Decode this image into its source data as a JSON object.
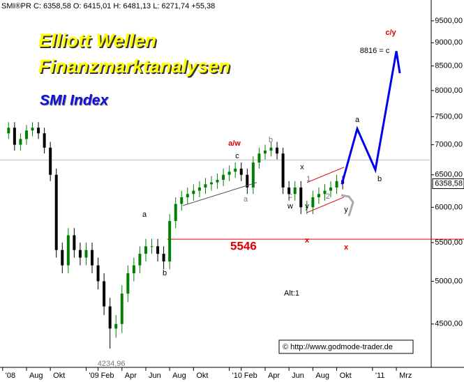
{
  "chart_data": {
    "type": "candlestick",
    "header": "SMI®PR C: 6358,58 O: 6415,01 H: 6481,13 L: 6271,74 +55,38",
    "title": "Elliott Wellen",
    "title2": "Finanzmarktanalysen",
    "subtitle": "SMI Index",
    "credit": "© http://www.godmode-trader.de",
    "log_scale": true,
    "up_color": "#008000",
    "down_color": "#000000",
    "x": [
      5.5,
      6,
      6.5,
      7,
      7.5,
      8,
      8.5,
      9,
      9.5,
      10,
      10.5,
      11,
      11.5,
      12,
      12.5,
      13,
      13.5,
      14,
      14.5,
      15,
      15.5,
      16,
      16.5,
      17,
      17.5,
      18,
      18.5,
      19,
      19.5,
      20,
      20.5,
      21,
      21.5,
      22,
      22.5,
      23,
      23.5,
      24,
      24.5,
      25,
      25.5,
      26,
      26.5,
      27,
      27.5,
      28,
      28.5,
      29,
      29.5,
      30,
      30.5,
      31,
      31.5,
      32,
      32.5,
      33,
      33.5
    ],
    "open": [
      7200,
      7300,
      7000,
      7100,
      7250,
      7300,
      7200,
      6950,
      6500,
      5400,
      5200,
      5600,
      5400,
      5300,
      5400,
      5200,
      5000,
      4700,
      4450,
      4500,
      4850,
      5100,
      5200,
      5350,
      5450,
      5450,
      5350,
      5250,
      5800,
      6050,
      6150,
      6200,
      6250,
      6300,
      6350,
      6380,
      6420,
      6500,
      6550,
      6600,
      6500,
      6300,
      6700,
      6850,
      6900,
      6950,
      6850,
      6300,
      6200,
      6300,
      6000,
      6000,
      6150,
      6200,
      6250,
      6300,
      6415.01
    ],
    "high": [
      7400,
      7400,
      7200,
      7350,
      7400,
      7400,
      7300,
      7050,
      6600,
      5500,
      5700,
      5700,
      5500,
      5500,
      5500,
      5300,
      5100,
      4800,
      4600,
      4950,
      5200,
      5300,
      5450,
      5550,
      5550,
      5550,
      5450,
      5900,
      6150,
      6250,
      6300,
      6350,
      6400,
      6450,
      6480,
      6520,
      6600,
      6650,
      6700,
      6700,
      6600,
      6800,
      6950,
      7000,
      7050,
      7050,
      6950,
      6400,
      6400,
      6400,
      6100,
      6250,
      6300,
      6350,
      6400,
      6500,
      6481.13
    ],
    "low": [
      7100,
      6900,
      6900,
      7000,
      7150,
      7100,
      6850,
      6400,
      5300,
      5100,
      5100,
      5300,
      5200,
      5200,
      5100,
      4900,
      4600,
      4234.96,
      4350,
      4400,
      4750,
      5000,
      5100,
      5250,
      5350,
      5250,
      5150,
      5150,
      5700,
      5950,
      6050,
      6100,
      6150,
      6200,
      6250,
      6280,
      6320,
      6400,
      6450,
      6400,
      6200,
      6200,
      6600,
      6750,
      6800,
      6750,
      6200,
      6100,
      6100,
      5900,
      5900,
      5900,
      6050,
      6100,
      6150,
      6200,
      6271.74
    ],
    "close": [
      7300,
      7000,
      7100,
      7250,
      7300,
      7200,
      6950,
      6500,
      5400,
      5200,
      5600,
      5400,
      5300,
      5400,
      5200,
      5000,
      4700,
      4450,
      4500,
      4850,
      5100,
      5200,
      5350,
      5450,
      5450,
      5350,
      5250,
      5800,
      6050,
      6150,
      6200,
      6250,
      6300,
      6350,
      6380,
      6420,
      6500,
      6550,
      6600,
      6500,
      6300,
      6700,
      6850,
      6900,
      6950,
      6850,
      6300,
      6200,
      6300,
      6000,
      6000,
      6150,
      6200,
      6250,
      6300,
      6400,
      6358.58
    ],
    "low_labels": {
      "index": 17,
      "label": "4234,96"
    },
    "last_label": "6358,58",
    "support": 5546,
    "support_color": "#dd0000",
    "resistance": 6740,
    "projection": {
      "color": "#0000ee",
      "x": [
        33.43,
        34.72,
        36.24,
        38.0,
        38.29
      ],
      "values": [
        6350,
        7280,
        6580,
        8816,
        8350
      ]
    },
    "trendlines": [
      {
        "color": "#dd0000",
        "x": [
          30.51,
          33.61
        ],
        "values": [
          6378,
          6622
        ]
      },
      {
        "color": "#dd0000",
        "x": [
          30.51,
          33.61
        ],
        "values": [
          5922,
          6152
        ]
      },
      {
        "color": "#555555",
        "x": [
          20.1,
          26.3
        ],
        "values": [
          6024,
          6378
        ]
      }
    ],
    "annotations": [
      {
        "text": "a/w",
        "color": "#dd0000"
      },
      {
        "text": "c",
        "color": "#000000"
      },
      {
        "text": "b",
        "color": "#777777"
      },
      {
        "text": "a",
        "color": "#777777"
      },
      {
        "text": "a",
        "color": "#000000"
      },
      {
        "text": "b",
        "color": "#000000"
      },
      {
        "text": "x",
        "color": "#000000"
      },
      {
        "text": "1",
        "color": "#777777"
      },
      {
        "text": "c",
        "color": "#777777"
      },
      {
        "text": "w",
        "color": "#000000"
      },
      {
        "text": "y",
        "color": "#000000"
      },
      {
        "text": "2",
        "color": "#777777"
      },
      {
        "text": "y",
        "color": "#000000"
      },
      {
        "text": "x",
        "color": "#dd0000"
      },
      {
        "text": "x",
        "color": "#dd0000"
      },
      {
        "text": "a",
        "color": "#000000"
      },
      {
        "text": "b",
        "color": "#000000"
      },
      {
        "text": "c/y",
        "color": "#dd0000"
      },
      {
        "text": "8816 = c",
        "color": "#000000"
      },
      {
        "text": "Alt:1",
        "color": "#000000"
      }
    ],
    "xlim": [
      4.78,
      40.92
    ],
    "xticks": [
      {
        "value": 5,
        "label": "'08"
      },
      {
        "value": 7,
        "label": "Aug"
      },
      {
        "value": 9,
        "label": "Okt"
      },
      {
        "value": 12,
        "label": "'09"
      },
      {
        "value": 13,
        "label": "Feb"
      },
      {
        "value": 15,
        "label": "Apr"
      },
      {
        "value": 17,
        "label": "Jun"
      },
      {
        "value": 19,
        "label": "Aug"
      },
      {
        "value": 21,
        "label": "Okt"
      },
      {
        "value": 24,
        "label": "'10"
      },
      {
        "value": 25,
        "label": "Feb"
      },
      {
        "value": 27,
        "label": "Apr"
      },
      {
        "value": 29,
        "label": "Jun"
      },
      {
        "value": 31,
        "label": "Aug"
      },
      {
        "value": 33,
        "label": "Okt"
      },
      {
        "value": 36,
        "label": "'11"
      },
      {
        "value": 38,
        "label": "Mrz"
      }
    ],
    "ylim": [
      4044,
      10000
    ],
    "yticks": [
      {
        "value": 4500,
        "label": "4500,00"
      },
      {
        "value": 5000,
        "label": "5000,00"
      },
      {
        "value": 5500,
        "label": "5500,00"
      },
      {
        "value": 6000,
        "label": "6000,00"
      },
      {
        "value": 6500,
        "label": "6500,00"
      },
      {
        "value": 7000,
        "label": "7000,00"
      },
      {
        "value": 7500,
        "label": "7500,00"
      },
      {
        "value": 8000,
        "label": "8000,00"
      },
      {
        "value": 8500,
        "label": "8500,00"
      },
      {
        "value": 9000,
        "label": "9000,00"
      },
      {
        "value": 9500,
        "label": "9500,00"
      }
    ]
  }
}
